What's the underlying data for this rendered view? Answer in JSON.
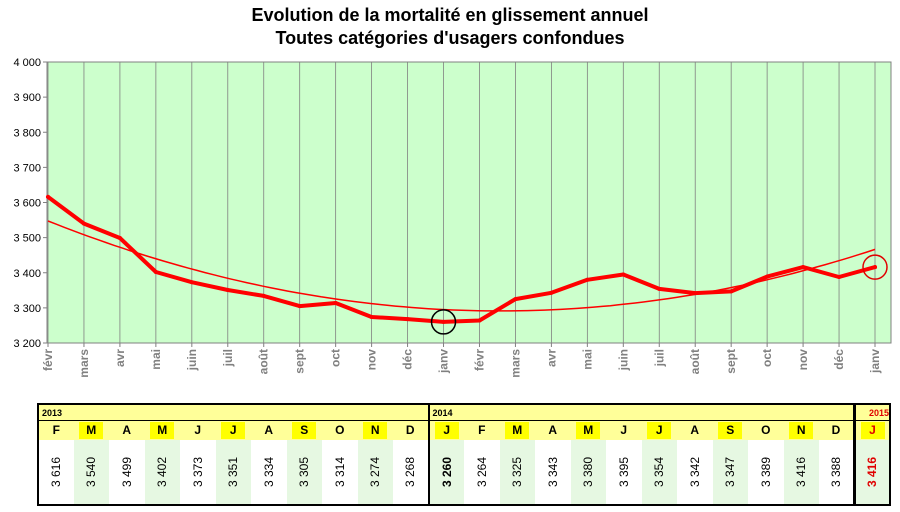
{
  "chart_data": {
    "type": "line",
    "title": "Evolution de la mortalité en glissement annuel",
    "subtitle": "Toutes catégories d'usagers confondues",
    "categories": [
      "févr",
      "mars",
      "avr",
      "mai",
      "juin",
      "juil",
      "août",
      "sept",
      "oct",
      "nov",
      "déc",
      "janv",
      "févr",
      "mars",
      "avr",
      "mai",
      "juin",
      "juil",
      "août",
      "sept",
      "oct",
      "nov",
      "déc",
      "janv"
    ],
    "series": [
      {
        "values": [
          3616,
          3540,
          3499,
          3402,
          3373,
          3351,
          3334,
          3305,
          3314,
          3274,
          3268,
          3260,
          3264,
          3325,
          3343,
          3380,
          3395,
          3354,
          3342,
          3347,
          3389,
          3416,
          3388,
          3416
        ]
      }
    ],
    "trend": "polynomial",
    "ylim": [
      3200,
      4000
    ],
    "yticks": [
      3200,
      3300,
      3400,
      3500,
      3600,
      3700,
      3800,
      3900,
      4000
    ],
    "ytick_labels": [
      "3 200",
      "3 300",
      "3 400",
      "3 500",
      "3 600",
      "3 700",
      "3 800",
      "3 900",
      "4 000"
    ],
    "grid": "vertical",
    "highlights": [
      {
        "category_index": 11,
        "color": "#000000"
      },
      {
        "category_index": 23,
        "color": "#e00000"
      }
    ],
    "colors": {
      "line": "#ff0000",
      "plot_bg": "#ccffcc",
      "marker_min": "#000000",
      "marker_last": "#e00000"
    }
  },
  "table": {
    "groups": [
      {
        "year": "2013",
        "months": [
          "F",
          "M",
          "A",
          "M",
          "J",
          "J",
          "A",
          "S",
          "O",
          "N",
          "D"
        ],
        "values": [
          "3 616",
          "3 540",
          "3 499",
          "3 402",
          "3 373",
          "3 351",
          "3 334",
          "3 305",
          "3 314",
          "3 274",
          "3 268"
        ]
      },
      {
        "year": "2014",
        "months": [
          "J",
          "F",
          "M",
          "A",
          "M",
          "J",
          "J",
          "A",
          "S",
          "O",
          "N",
          "D"
        ],
        "values": [
          "3 260",
          "3 264",
          "3 325",
          "3 343",
          "3 380",
          "3 395",
          "3 354",
          "3 342",
          "3 347",
          "3 389",
          "3 416",
          "3 388"
        ]
      },
      {
        "year": "2015",
        "months": [
          "J"
        ],
        "values": [
          "3 416"
        ]
      }
    ],
    "colors": {
      "header_bg": "#ffff99",
      "letter_highlight": "#ffff00",
      "alt_value_bg": "#e6f8e2",
      "emphasis_red": "#e00000"
    }
  }
}
